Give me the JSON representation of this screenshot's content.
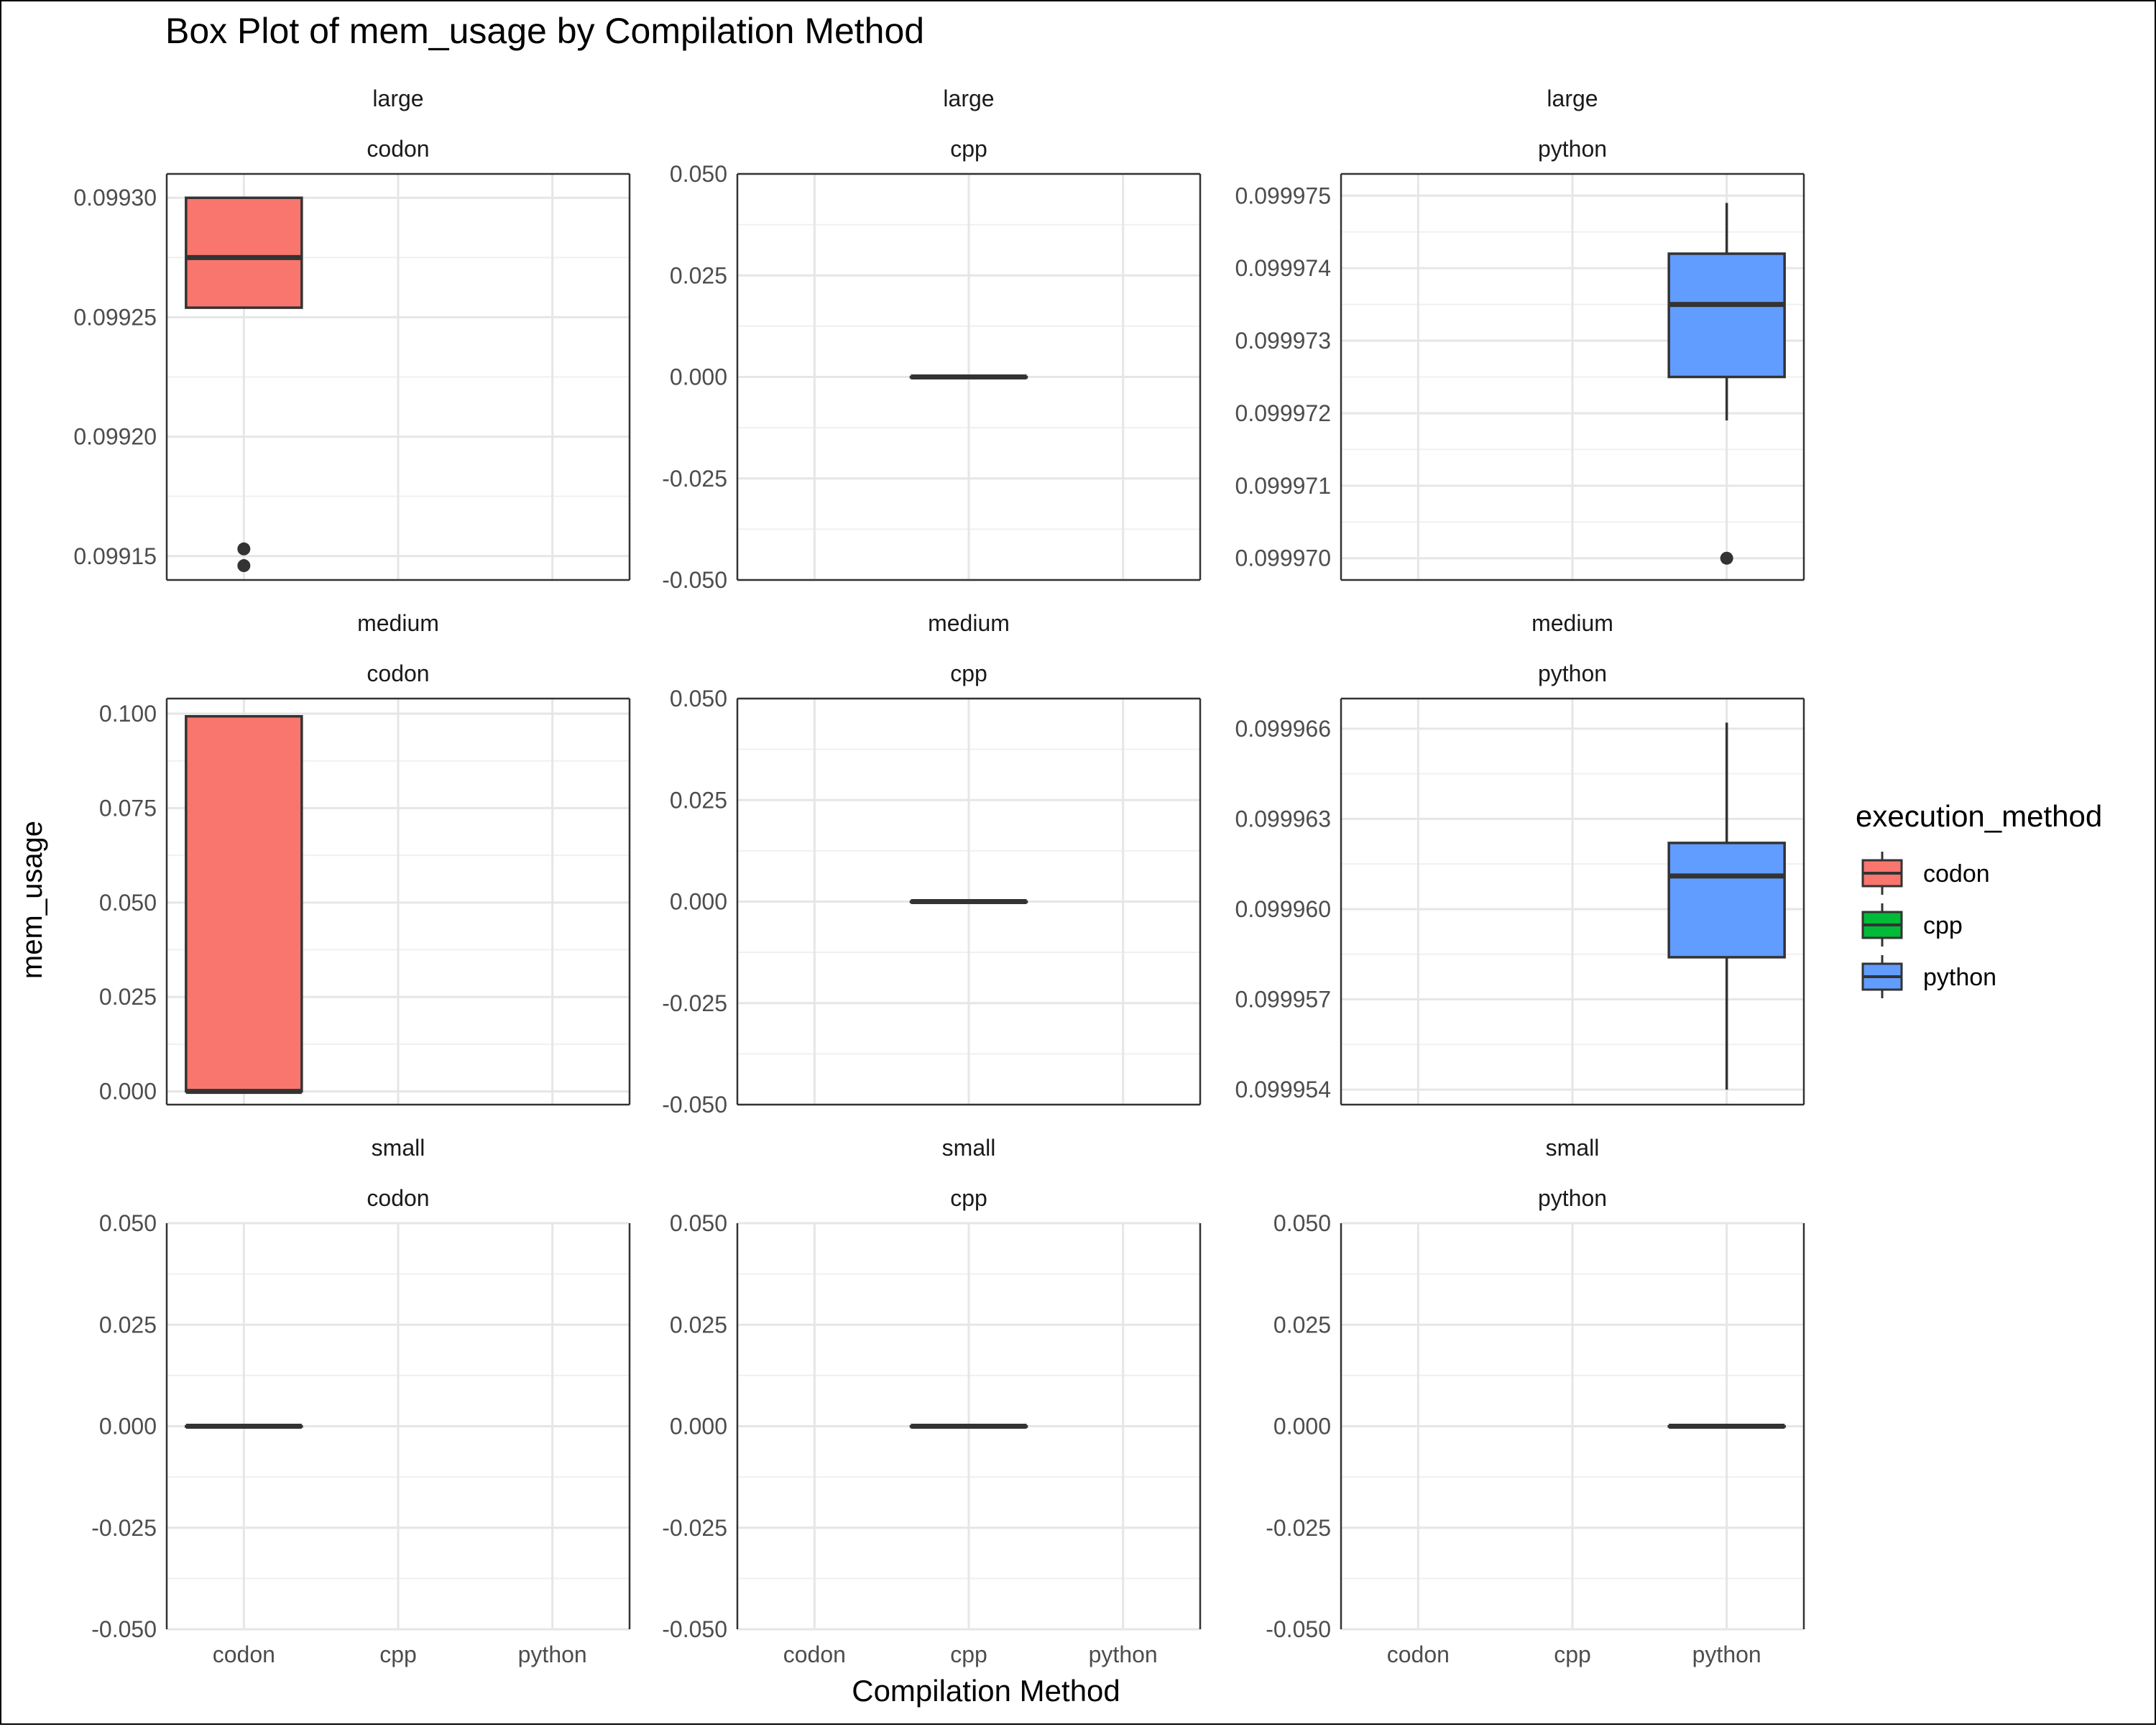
{
  "chart_data": {
    "type": "box",
    "title": "Box Plot of mem_usage by Compilation Method",
    "xlabel": "Compilation Method",
    "ylabel": "mem_usage",
    "categories": [
      "codon",
      "cpp",
      "python"
    ],
    "legend": {
      "title": "execution_method",
      "position": "right",
      "items": [
        {
          "label": "codon",
          "color": "#F8766D"
        },
        {
          "label": "cpp",
          "color": "#00BA38"
        },
        {
          "label": "python",
          "color": "#619CFF"
        }
      ]
    },
    "panels": [
      {
        "size": "large",
        "method": "codon",
        "ylim": [
          0.09914,
          0.09931
        ],
        "yticks": [
          "0.09915",
          "0.09920",
          "0.09925",
          "0.09930"
        ],
        "ytick_values": [
          0.09915,
          0.0992,
          0.09925,
          0.0993
        ],
        "boxes": [
          {
            "category": "codon",
            "lower": 0.099254,
            "q1": 0.099254,
            "median": 0.099275,
            "q3": 0.0993,
            "upper": 0.0993,
            "outliers": [
              0.099153,
              0.099146
            ]
          }
        ]
      },
      {
        "size": "large",
        "method": "cpp",
        "ylim": [
          -0.05,
          0.05
        ],
        "yticks": [
          "-0.050",
          "-0.025",
          "0.000",
          "0.025",
          "0.050"
        ],
        "ytick_values": [
          -0.05,
          -0.025,
          0,
          0.025,
          0.05
        ],
        "boxes": [
          {
            "category": "cpp",
            "lower": 0,
            "q1": 0,
            "median": 0,
            "q3": 0,
            "upper": 0,
            "outliers": []
          }
        ]
      },
      {
        "size": "large",
        "method": "python",
        "ylim": [
          0.0999697,
          0.0999753
        ],
        "yticks": [
          "0.099970",
          "0.099971",
          "0.099972",
          "0.099973",
          "0.099974",
          "0.099975"
        ],
        "ytick_values": [
          0.09997,
          0.099971,
          0.099972,
          0.099973,
          0.099974,
          0.099975
        ],
        "boxes": [
          {
            "category": "python",
            "lower": 0.0999719,
            "q1": 0.0999725,
            "median": 0.0999735,
            "q3": 0.0999742,
            "upper": 0.0999749,
            "outliers": [
              0.09997
            ]
          }
        ]
      },
      {
        "size": "medium",
        "method": "codon",
        "ylim": [
          -0.0035,
          0.104
        ],
        "yticks": [
          "0.000",
          "0.025",
          "0.050",
          "0.075",
          "0.100"
        ],
        "ytick_values": [
          0,
          0.025,
          0.05,
          0.075,
          0.1
        ],
        "boxes": [
          {
            "category": "codon",
            "lower": 0,
            "q1": 0,
            "median": 0,
            "q3": 0.0993,
            "upper": 0.0993,
            "outliers": []
          }
        ]
      },
      {
        "size": "medium",
        "method": "cpp",
        "ylim": [
          -0.05,
          0.05
        ],
        "yticks": [
          "-0.050",
          "-0.025",
          "0.000",
          "0.025",
          "0.050"
        ],
        "ytick_values": [
          -0.05,
          -0.025,
          0,
          0.025,
          0.05
        ],
        "boxes": [
          {
            "category": "cpp",
            "lower": 0,
            "q1": 0,
            "median": 0,
            "q3": 0,
            "upper": 0,
            "outliers": []
          }
        ]
      },
      {
        "size": "medium",
        "method": "python",
        "ylim": [
          0.0999535,
          0.099967
        ],
        "yticks": [
          "0.099954",
          "0.099957",
          "0.099960",
          "0.099963",
          "0.099966"
        ],
        "ytick_values": [
          0.099954,
          0.099957,
          0.09996,
          0.099963,
          0.099966
        ],
        "boxes": [
          {
            "category": "python",
            "lower": 0.099954,
            "q1": 0.0999584,
            "median": 0.0999611,
            "q3": 0.0999622,
            "upper": 0.0999662,
            "outliers": []
          }
        ]
      },
      {
        "size": "small",
        "method": "codon",
        "ylim": [
          -0.05,
          0.05
        ],
        "yticks": [
          "-0.050",
          "-0.025",
          "0.000",
          "0.025",
          "0.050"
        ],
        "ytick_values": [
          -0.05,
          -0.025,
          0,
          0.025,
          0.05
        ],
        "boxes": [
          {
            "category": "codon",
            "lower": 0,
            "q1": 0,
            "median": 0,
            "q3": 0,
            "upper": 0,
            "outliers": []
          }
        ]
      },
      {
        "size": "small",
        "method": "cpp",
        "ylim": [
          -0.05,
          0.05
        ],
        "yticks": [
          "-0.050",
          "-0.025",
          "0.000",
          "0.025",
          "0.050"
        ],
        "ytick_values": [
          -0.05,
          -0.025,
          0,
          0.025,
          0.05
        ],
        "boxes": [
          {
            "category": "cpp",
            "lower": 0,
            "q1": 0,
            "median": 0,
            "q3": 0,
            "upper": 0,
            "outliers": []
          }
        ]
      },
      {
        "size": "small",
        "method": "python",
        "ylim": [
          -0.05,
          0.05
        ],
        "yticks": [
          "-0.050",
          "-0.025",
          "0.000",
          "0.025",
          "0.050"
        ],
        "ytick_values": [
          -0.05,
          -0.025,
          0,
          0.025,
          0.05
        ],
        "boxes": [
          {
            "category": "python",
            "lower": 0,
            "q1": 0,
            "median": 0,
            "q3": 0,
            "upper": 0,
            "outliers": []
          }
        ]
      }
    ]
  }
}
